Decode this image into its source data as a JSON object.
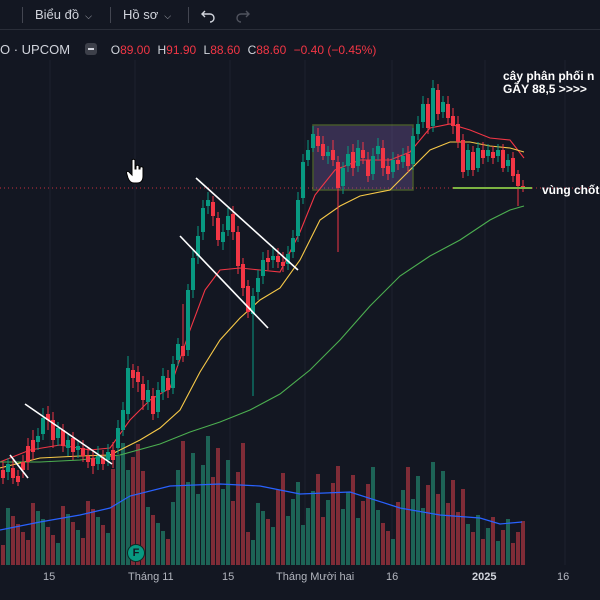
{
  "toolbar": {
    "chart_label": "Biểu đồ",
    "profile_label": "Hồ sơ"
  },
  "legend": {
    "symbol": "O · UPCOM",
    "open_key": "O",
    "open_val": "89.00",
    "high_key": "H",
    "high_val": "91.90",
    "low_key": "L",
    "low_val": "88.60",
    "close_key": "C",
    "close_val": "88.60",
    "change": "−0.40 (−0.45%)"
  },
  "annotations": {
    "distribution_line1": "cây phân phối n",
    "distribution_line2": "GÃY 88,5 >>>>",
    "support_zone": "vùng chốt"
  },
  "xaxis": {
    "labels": [
      "15",
      "Tháng 11",
      "15",
      "Tháng Mười hai",
      "16",
      "2025",
      "16"
    ]
  },
  "badge": {
    "label": "F"
  },
  "colors": {
    "background": "#131722",
    "up": "#089981",
    "down": "#f23645",
    "ma_fast": "#f23645",
    "ma_mid": "#f7c948",
    "ma_slow": "#4caf50",
    "volume_ma": "#2962ff"
  },
  "icons": [
    "chevron-down-icon",
    "undo-icon",
    "redo-icon",
    "collapse-icon",
    "hand-cursor-icon"
  ]
}
